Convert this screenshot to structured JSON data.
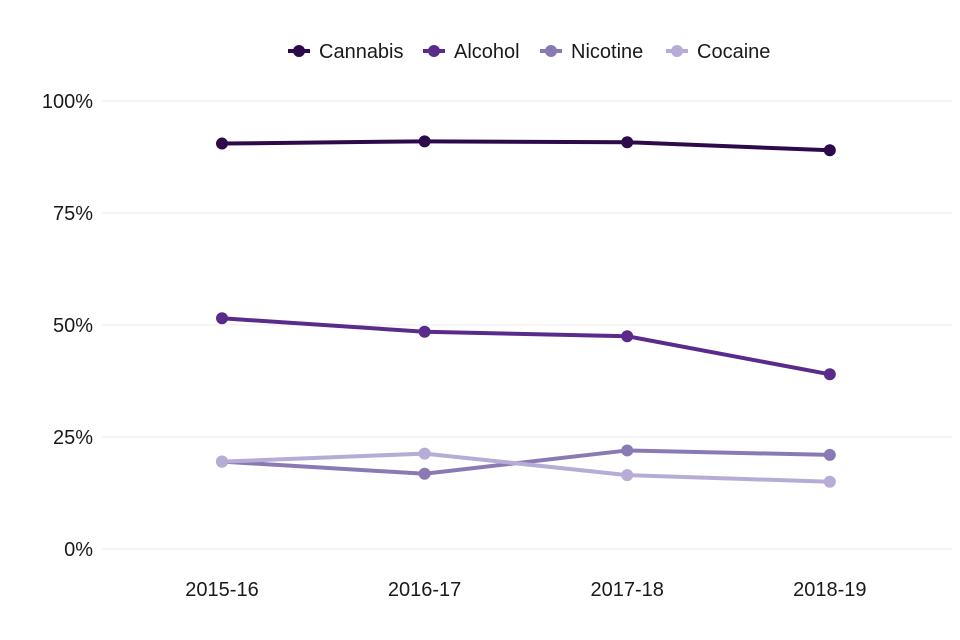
{
  "chart_data": {
    "type": "line",
    "title": "",
    "xlabel": "",
    "ylabel": "",
    "categories": [
      "2015-16",
      "2016-17",
      "2017-18",
      "2018-19"
    ],
    "ylim": [
      0,
      100
    ],
    "yticks": [
      0,
      25,
      50,
      75,
      100
    ],
    "ytick_labels": [
      "0%",
      "25%",
      "50%",
      "75%",
      "100%"
    ],
    "grid": true,
    "legend_position": "top-center",
    "series": [
      {
        "name": "Cannabis",
        "color": "#2d0a4a",
        "values": [
          90.5,
          91.0,
          90.8,
          89.0
        ]
      },
      {
        "name": "Alcohol",
        "color": "#5a2b8a",
        "values": [
          51.5,
          48.5,
          47.5,
          39.0
        ]
      },
      {
        "name": "Nicotine",
        "color": "#8a7ab4",
        "values": [
          19.5,
          16.8,
          22.0,
          21.0
        ]
      },
      {
        "name": "Cocaine",
        "color": "#b6acd6",
        "values": [
          19.5,
          21.3,
          16.5,
          15.0
        ]
      }
    ]
  }
}
